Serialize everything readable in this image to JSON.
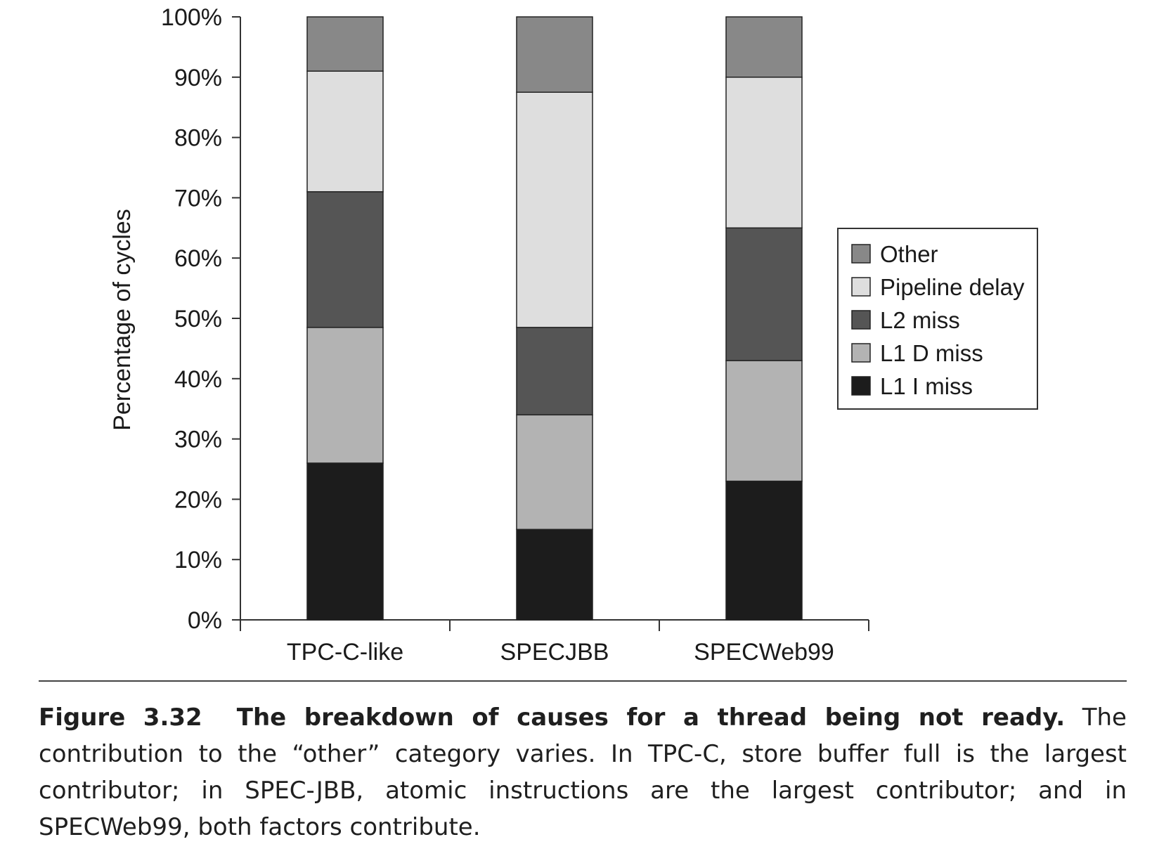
{
  "chart_data": {
    "type": "bar",
    "stacked": true,
    "categories": [
      "TPC-C-like",
      "SPECJBB",
      "SPECWeb99"
    ],
    "series": [
      {
        "name": "L1 I miss",
        "values": [
          26,
          15,
          23
        ],
        "color": "#1c1c1c"
      },
      {
        "name": "L1 D miss",
        "values": [
          22.5,
          19,
          20
        ],
        "color": "#b3b3b3"
      },
      {
        "name": "L2 miss",
        "values": [
          22.5,
          14.5,
          22
        ],
        "color": "#555555"
      },
      {
        "name": "Pipeline delay",
        "values": [
          20,
          39,
          25
        ],
        "color": "#dedede"
      },
      {
        "name": "Other",
        "values": [
          9,
          12.5,
          10
        ],
        "color": "#888888"
      }
    ],
    "ylabel": "Percentage of cycles",
    "xlabel": "",
    "ylim": [
      0,
      100
    ],
    "yticks": [
      "0%",
      "10%",
      "20%",
      "30%",
      "40%",
      "50%",
      "60%",
      "70%",
      "80%",
      "90%",
      "100%"
    ],
    "legend": {
      "placement": "right",
      "order": [
        "Other",
        "Pipeline delay",
        "L2 miss",
        "L1 D miss",
        "L1 I miss"
      ]
    },
    "grid": false
  },
  "caption": {
    "label": "Figure 3.32",
    "title": "The breakdown of causes for a thread being not ready.",
    "text": "The contribution to the “other” category varies. In TPC-C, store buffer full is the largest contributor; in SPEC-JBB, atomic instructions are the largest contributor; and in SPECWeb99, both factors contribute."
  }
}
